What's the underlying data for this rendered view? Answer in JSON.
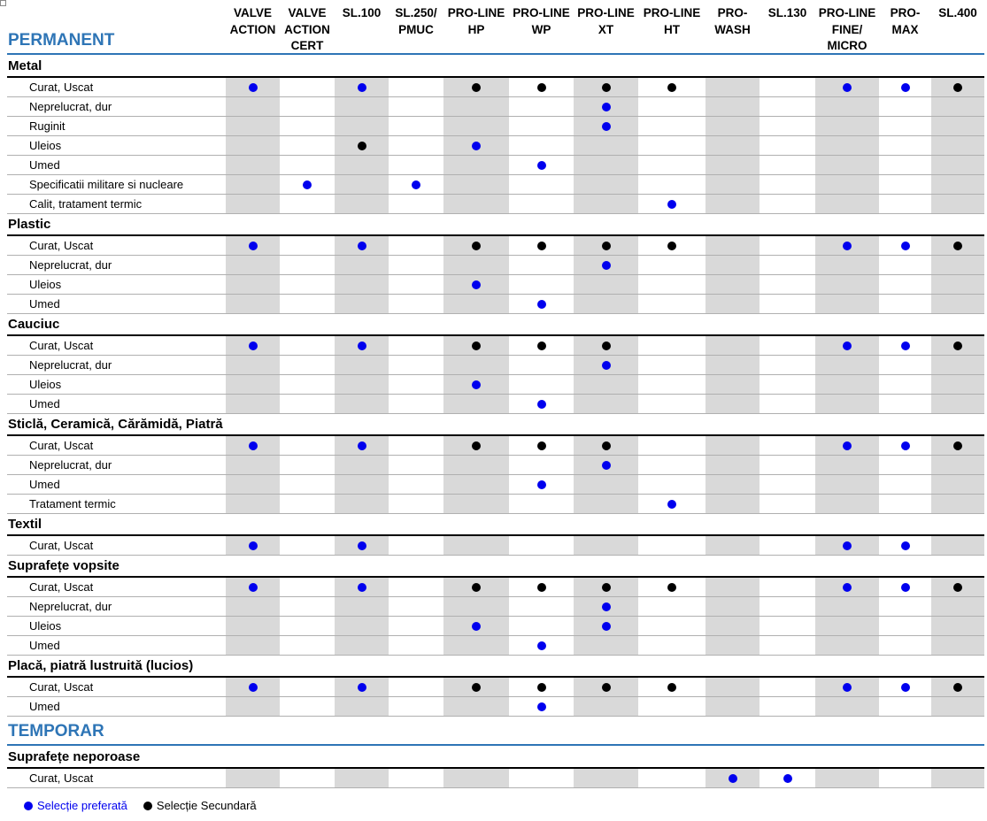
{
  "colors": {
    "preferred": "#0000ee",
    "secondary": "#000000",
    "section": "#2e75b6",
    "stripe": "#d9d9d9"
  },
  "columns": [
    "VALVE\nACTION",
    "VALVE\nACTION\nCERT",
    "SL.100",
    "SL.250/\nPMUC",
    "PRO-LINE\nHP",
    "PRO-LINE\nWP",
    "PRO-LINE\nXT",
    "PRO-LINE\nHT",
    "PRO-\nWASH",
    "SL.130",
    "PRO-LINE\nFINE/\nMICRO",
    "PRO-\nMAX",
    "SL.400"
  ],
  "sections": [
    {
      "title": "PERMANENT",
      "categories": [
        {
          "name": "Metal",
          "rows": [
            {
              "label": "Curat, Uscat",
              "marks": [
                "p",
                "",
                "p",
                "",
                "s",
                "s",
                "s",
                "s",
                "",
                "",
                "p",
                "p",
                "s"
              ]
            },
            {
              "label": "Neprelucrat, dur",
              "marks": [
                "",
                "",
                "",
                "",
                "",
                "",
                "p",
                "",
                "",
                "",
                "",
                "",
                ""
              ]
            },
            {
              "label": "Ruginit",
              "marks": [
                "",
                "",
                "",
                "",
                "",
                "",
                "p",
                "",
                "",
                "",
                "",
                "",
                ""
              ]
            },
            {
              "label": "Uleios",
              "marks": [
                "",
                "",
                "s",
                "",
                "p",
                "",
                "",
                "",
                "",
                "",
                "",
                "",
                ""
              ]
            },
            {
              "label": "Umed",
              "marks": [
                "",
                "",
                "",
                "",
                "",
                "p",
                "",
                "",
                "",
                "",
                "",
                "",
                ""
              ]
            },
            {
              "label": "Specificatii militare si nucleare",
              "marks": [
                "",
                "p",
                "",
                "p",
                "",
                "",
                "",
                "",
                "",
                "",
                "",
                "",
                ""
              ]
            },
            {
              "label": "Calit, tratament termic",
              "marks": [
                "",
                "",
                "",
                "",
                "",
                "",
                "",
                "p",
                "",
                "",
                "",
                "",
                ""
              ]
            }
          ]
        },
        {
          "name": "Plastic",
          "rows": [
            {
              "label": "Curat, Uscat",
              "marks": [
                "p",
                "",
                "p",
                "",
                "s",
                "s",
                "s",
                "s",
                "",
                "",
                "p",
                "p",
                "s"
              ]
            },
            {
              "label": "Neprelucrat, dur",
              "marks": [
                "",
                "",
                "",
                "",
                "",
                "",
                "p",
                "",
                "",
                "",
                "",
                "",
                ""
              ]
            },
            {
              "label": "Uleios",
              "marks": [
                "",
                "",
                "",
                "",
                "p",
                "",
                "",
                "",
                "",
                "",
                "",
                "",
                ""
              ]
            },
            {
              "label": "Umed",
              "marks": [
                "",
                "",
                "",
                "",
                "",
                "p",
                "",
                "",
                "",
                "",
                "",
                "",
                ""
              ]
            }
          ]
        },
        {
          "name": "Cauciuc",
          "rows": [
            {
              "label": "Curat, Uscat",
              "marks": [
                "p",
                "",
                "p",
                "",
                "s",
                "s",
                "s",
                "",
                "",
                "",
                "p",
                "p",
                "s"
              ]
            },
            {
              "label": "Neprelucrat, dur",
              "marks": [
                "",
                "",
                "",
                "",
                "",
                "",
                "p",
                "",
                "",
                "",
                "",
                "",
                ""
              ]
            },
            {
              "label": "Uleios",
              "marks": [
                "",
                "",
                "",
                "",
                "p",
                "",
                "",
                "",
                "",
                "",
                "",
                "",
                ""
              ]
            },
            {
              "label": "Umed",
              "marks": [
                "",
                "",
                "",
                "",
                "",
                "p",
                "",
                "",
                "",
                "",
                "",
                "",
                ""
              ]
            }
          ]
        },
        {
          "name": "Sticlă, Ceramică, Cărămidă, Piatră",
          "rows": [
            {
              "label": "Curat, Uscat",
              "marks": [
                "p",
                "",
                "p",
                "",
                "s",
                "s",
                "s",
                "",
                "",
                "",
                "p",
                "p",
                "s"
              ]
            },
            {
              "label": "Neprelucrat, dur",
              "marks": [
                "",
                "",
                "",
                "",
                "",
                "",
                "p",
                "",
                "",
                "",
                "",
                "",
                ""
              ]
            },
            {
              "label": "Umed",
              "marks": [
                "",
                "",
                "",
                "",
                "",
                "p",
                "",
                "",
                "",
                "",
                "",
                "",
                ""
              ]
            },
            {
              "label": "Tratament termic",
              "marks": [
                "",
                "",
                "",
                "",
                "",
                "",
                "",
                "p",
                "",
                "",
                "",
                "",
                ""
              ]
            }
          ]
        },
        {
          "name": "Textil",
          "rows": [
            {
              "label": "Curat, Uscat",
              "marks": [
                "p",
                "",
                "p",
                "",
                "",
                "",
                "",
                "",
                "",
                "",
                "p",
                "p",
                ""
              ]
            }
          ]
        },
        {
          "name": "Suprafețe vopsite",
          "rows": [
            {
              "label": "Curat, Uscat",
              "marks": [
                "p",
                "",
                "p",
                "",
                "s",
                "s",
                "s",
                "s",
                "",
                "",
                "p",
                "p",
                "s"
              ]
            },
            {
              "label": "Neprelucrat, dur",
              "marks": [
                "",
                "",
                "",
                "",
                "",
                "",
                "p",
                "",
                "",
                "",
                "",
                "",
                ""
              ]
            },
            {
              "label": "Uleios",
              "marks": [
                "",
                "",
                "",
                "",
                "p",
                "",
                "p",
                "",
                "",
                "",
                "",
                "",
                ""
              ]
            },
            {
              "label": "Umed",
              "marks": [
                "",
                "",
                "",
                "",
                "",
                "p",
                "",
                "",
                "",
                "",
                "",
                "",
                ""
              ]
            }
          ]
        },
        {
          "name": "Placă, piatră lustruită (lucios)",
          "rows": [
            {
              "label": "Curat, Uscat",
              "marks": [
                "p",
                "",
                "p",
                "",
                "s",
                "s",
                "s",
                "s",
                "",
                "",
                "p",
                "p",
                "s"
              ]
            },
            {
              "label": "Umed",
              "marks": [
                "",
                "",
                "",
                "",
                "",
                "p",
                "",
                "",
                "",
                "",
                "",
                "",
                ""
              ]
            }
          ]
        }
      ]
    },
    {
      "title": "TEMPORAR",
      "categories": [
        {
          "name": "Suprafețe neporoase",
          "rows": [
            {
              "label": "Curat, Uscat",
              "marks": [
                "",
                "",
                "",
                "",
                "",
                "",
                "",
                "",
                "p",
                "p",
                "",
                "",
                ""
              ]
            }
          ]
        }
      ]
    }
  ],
  "legend": {
    "preferred": "Selecție preferată",
    "secondary": "Selecție Secundară"
  }
}
